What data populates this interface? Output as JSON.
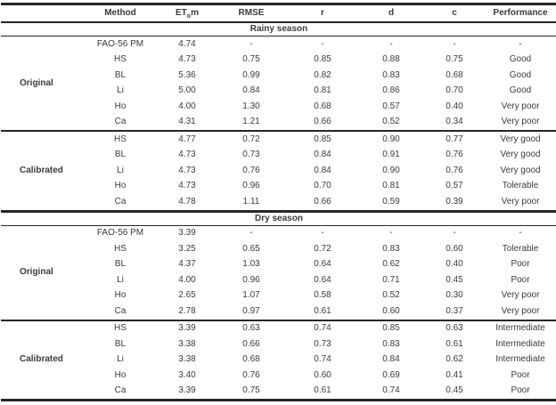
{
  "chart_data": {
    "type": "table",
    "columns": [
      "Method",
      {
        "pre": "ET",
        "sub": "o",
        "post": "m"
      },
      "RMSE",
      "r",
      "d",
      "c",
      "Performance"
    ],
    "column_keys": [
      "method",
      "etm",
      "rmse",
      "r",
      "d",
      "c",
      "performance"
    ],
    "sections": [
      {
        "title": "Rainy season",
        "groups": [
          {
            "label": "Original",
            "rows": [
              {
                "method": "FAO-56 PM",
                "etm": "4.74",
                "rmse": "-",
                "r": "-",
                "d": "-",
                "c": "-",
                "performance": "-"
              },
              {
                "method": "HS",
                "etm": "4.73",
                "rmse": "0.75",
                "r": "0.85",
                "d": "0.88",
                "c": "0.75",
                "performance": "Good"
              },
              {
                "method": "BL",
                "etm": "5.36",
                "rmse": "0.99",
                "r": "0.82",
                "d": "0.83",
                "c": "0.68",
                "performance": "Good"
              },
              {
                "method": "Li",
                "etm": "5.00",
                "rmse": "0.84",
                "r": "0.81",
                "d": "0.86",
                "c": "0.70",
                "performance": "Good"
              },
              {
                "method": "Ho",
                "etm": "4.00",
                "rmse": "1.30",
                "r": "0.68",
                "d": "0.57",
                "c": "0.40",
                "performance": "Very poor"
              },
              {
                "method": "Ca",
                "etm": "4.31",
                "rmse": "1.21",
                "r": "0.66",
                "d": "0.52",
                "c": "0.34",
                "performance": "Very poor"
              }
            ]
          },
          {
            "label": "Calibrated",
            "rows": [
              {
                "method": "HS",
                "etm": "4.77",
                "rmse": "0.72",
                "r": "0.85",
                "d": "0.90",
                "c": "0.77",
                "performance": "Very good"
              },
              {
                "method": "BL",
                "etm": "4.73",
                "rmse": "0.73",
                "r": "0.84",
                "d": "0.91",
                "c": "0.76",
                "performance": "Very good"
              },
              {
                "method": "Li",
                "etm": "4.73",
                "rmse": "0.76",
                "r": "0.84",
                "d": "0.90",
                "c": "0.76",
                "performance": "Very good"
              },
              {
                "method": "Ho",
                "etm": "4.73",
                "rmse": "0.96",
                "r": "0.70",
                "d": "0.81",
                "c": "0.57",
                "performance": "Tolerable"
              },
              {
                "method": "Ca",
                "etm": "4.78",
                "rmse": "1.11",
                "r": "0.66",
                "d": "0.59",
                "c": "0.39",
                "performance": "Very poor"
              }
            ]
          }
        ]
      },
      {
        "title": "Dry season",
        "groups": [
          {
            "label": "Original",
            "rows": [
              {
                "method": "FAO-56 PM",
                "etm": "3.39",
                "rmse": "-",
                "r": "-",
                "d": "-",
                "c": "-",
                "performance": "-"
              },
              {
                "method": "HS",
                "etm": "3.25",
                "rmse": "0.65",
                "r": "0.72",
                "d": "0.83",
                "c": "0.60",
                "performance": "Tolerable"
              },
              {
                "method": "BL",
                "etm": "4.37",
                "rmse": "1.03",
                "r": "0.64",
                "d": "0.62",
                "c": "0.40",
                "performance": "Poor"
              },
              {
                "method": "Li",
                "etm": "4.00",
                "rmse": "0.96",
                "r": "0.64",
                "d": "0.71",
                "c": "0.45",
                "performance": "Poor"
              },
              {
                "method": "Ho",
                "etm": "2.65",
                "rmse": "1.07",
                "r": "0.58",
                "d": "0.52",
                "c": "0.30",
                "performance": "Very poor"
              },
              {
                "method": "Ca",
                "etm": "2.78",
                "rmse": "0.97",
                "r": "0.61",
                "d": "0.60",
                "c": "0.37",
                "performance": "Very poor"
              }
            ]
          },
          {
            "label": "Calibrated",
            "rows": [
              {
                "method": "HS",
                "etm": "3.39",
                "rmse": "0.63",
                "r": "0.74",
                "d": "0.85",
                "c": "0.63",
                "performance": "Intermediate"
              },
              {
                "method": "BL",
                "etm": "3.38",
                "rmse": "0.66",
                "r": "0.73",
                "d": "0.83",
                "c": "0.61",
                "performance": "Intermediate"
              },
              {
                "method": "Li",
                "etm": "3.38",
                "rmse": "0.68",
                "r": "0.74",
                "d": "0.84",
                "c": "0.62",
                "performance": "Intermediate"
              },
              {
                "method": "Ho",
                "etm": "3.40",
                "rmse": "0.76",
                "r": "0.60",
                "d": "0.69",
                "c": "0.41",
                "performance": "Poor"
              },
              {
                "method": "Ca",
                "etm": "3.39",
                "rmse": "0.75",
                "r": "0.61",
                "d": "0.74",
                "c": "0.45",
                "performance": "Poor"
              }
            ]
          }
        ]
      }
    ],
    "colors": {
      "text": "#3a3a3c",
      "line": "#262626",
      "background": "#ffffff"
    }
  }
}
